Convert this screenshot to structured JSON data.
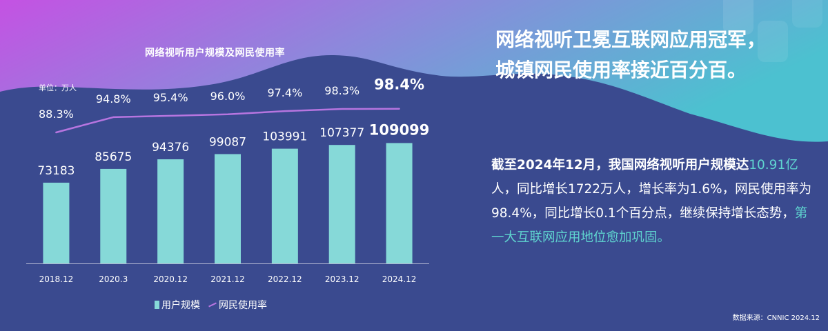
{
  "colors": {
    "bar": "#86d9d8",
    "line": "#b775e0",
    "text": "#ffffff",
    "highlight": "#5fd4cf",
    "background_dark": "#3a4a8f",
    "gradient_top_left": "#c452e3",
    "gradient_right": "#4cc1d0"
  },
  "headline": {
    "line1": "网络视听卫冕互联网应用冠军，",
    "line2": "城镇网民使用率接近百分百。"
  },
  "body": {
    "p1": "截至2024年12月，我国网络视听用户规模达",
    "hl1": "10.91亿",
    "p2": "人，同比增长1722万人，增长率为1.6%，网民使用率为98.4%，同比增长0.1个百分点，继续保持增长态势，",
    "hl2": "第一大互联网应用地位愈加巩固。"
  },
  "source": "数据来源：CNNIC 2024.12",
  "chart_data": {
    "type": "bar",
    "title": "网络视听用户规模及网民使用率",
    "unit_label": "单位：万人",
    "categories": [
      "2018.12",
      "2020.3",
      "2020.12",
      "2021.12",
      "2022.12",
      "2023.12",
      "2024.12"
    ],
    "series": [
      {
        "name": "用户规模",
        "type": "bar",
        "values": [
          73183,
          85675,
          94376,
          99087,
          103991,
          107377,
          109099
        ]
      },
      {
        "name": "网民使用率",
        "type": "line",
        "values": [
          88.3,
          94.8,
          95.4,
          96.0,
          97.4,
          98.3,
          98.4
        ],
        "labels": [
          "88.3%",
          "94.8%",
          "95.4%",
          "96.0%",
          "97.4%",
          "98.3%",
          "98.4%"
        ]
      }
    ],
    "legend": [
      "用户规模",
      "网民使用率"
    ],
    "legend_position": "bottom"
  }
}
